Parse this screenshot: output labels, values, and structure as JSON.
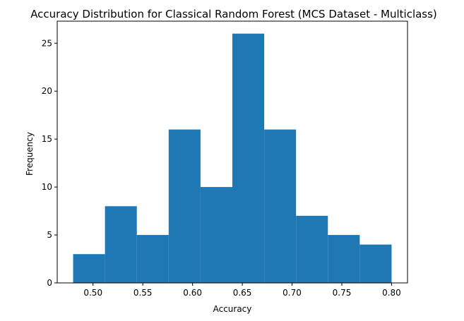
{
  "chart_data": {
    "type": "bar",
    "title": "Accuracy Distribution for Classical Random Forest (MCS Dataset - Multiclass)",
    "xlabel": "Accuracy",
    "ylabel": "Frequency",
    "bin_edges": [
      0.48,
      0.512,
      0.544,
      0.576,
      0.608,
      0.64,
      0.672,
      0.704,
      0.736,
      0.768,
      0.8
    ],
    "values": [
      3,
      8,
      5,
      16,
      10,
      26,
      16,
      7,
      5,
      4
    ],
    "xlim": [
      0.464,
      0.816
    ],
    "ylim": [
      0,
      27.3
    ],
    "xticks": [
      0.5,
      0.55,
      0.6,
      0.65,
      0.7,
      0.75,
      0.8
    ],
    "xtick_labels": [
      "0.50",
      "0.55",
      "0.60",
      "0.65",
      "0.70",
      "0.75",
      "0.80"
    ],
    "yticks": [
      0,
      5,
      10,
      15,
      20,
      25
    ],
    "ytick_labels": [
      "0",
      "5",
      "10",
      "15",
      "20",
      "25"
    ],
    "bar_color": "#1f77b4",
    "grid": false,
    "legend": "none"
  }
}
